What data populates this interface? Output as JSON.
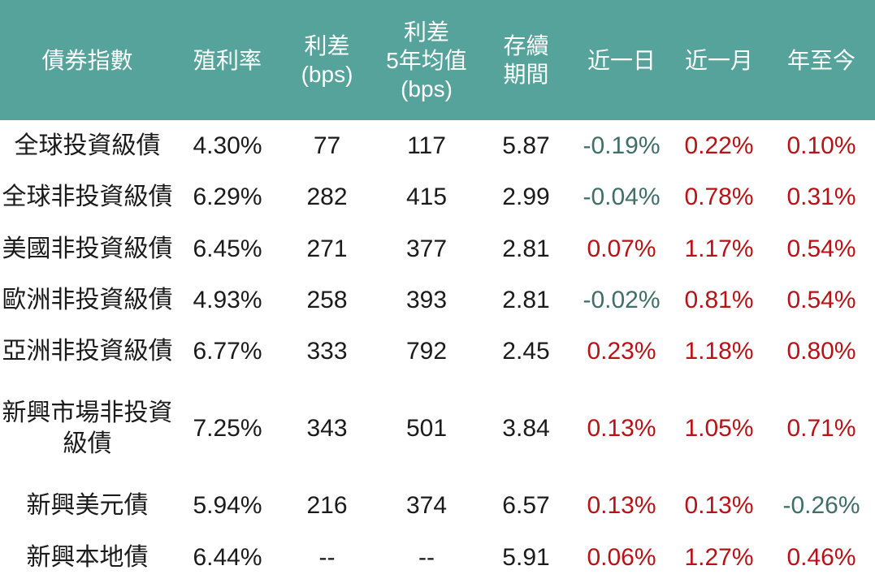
{
  "theme": {
    "header_background": "#55a39b",
    "header_text_color": "#ffffff",
    "body_text_color": "#1b1b1b",
    "positive_change_color": "#b71317",
    "negative_change_color": "#406e68",
    "page_background": "#ffffff"
  },
  "table": {
    "headers": [
      "債券指數",
      "殖利率",
      "利差\n(bps)",
      "利差\n5年均值\n(bps)",
      "存續\n期間",
      "近一日",
      "近一月",
      "年至今"
    ],
    "rows": [
      {
        "name": "全球投資級債",
        "yield": "4.30%",
        "spread_bps": "77",
        "spread_5y_avg_bps": "117",
        "duration": "5.87",
        "day": "-0.19%",
        "month": "0.22%",
        "ytd": "0.10%"
      },
      {
        "name": "全球非投資級債",
        "yield": "6.29%",
        "spread_bps": "282",
        "spread_5y_avg_bps": "415",
        "duration": "2.99",
        "day": "-0.04%",
        "month": "0.78%",
        "ytd": "0.31%"
      },
      {
        "name": "美國非投資級債",
        "yield": "6.45%",
        "spread_bps": "271",
        "spread_5y_avg_bps": "377",
        "duration": "2.81",
        "day": "0.07%",
        "month": "1.17%",
        "ytd": "0.54%"
      },
      {
        "name": "歐洲非投資級債",
        "yield": "4.93%",
        "spread_bps": "258",
        "spread_5y_avg_bps": "393",
        "duration": "2.81",
        "day": "-0.02%",
        "month": "0.81%",
        "ytd": "0.54%"
      },
      {
        "name": "亞洲非投資級債",
        "yield": "6.77%",
        "spread_bps": "333",
        "spread_5y_avg_bps": "792",
        "duration": "2.45",
        "day": "0.23%",
        "month": "1.18%",
        "ytd": "0.80%"
      },
      {
        "name": "新興市場非投資級債",
        "yield": "7.25%",
        "spread_bps": "343",
        "spread_5y_avg_bps": "501",
        "duration": "3.84",
        "day": "0.13%",
        "month": "1.05%",
        "ytd": "0.71%"
      },
      {
        "name": "新興美元債",
        "yield": "5.94%",
        "spread_bps": "216",
        "spread_5y_avg_bps": "374",
        "duration": "6.57",
        "day": "0.13%",
        "month": "0.13%",
        "ytd": "-0.26%"
      },
      {
        "name": "新興本地債",
        "yield": "6.44%",
        "spread_bps": "--",
        "spread_5y_avg_bps": "--",
        "duration": "5.91",
        "day": "0.06%",
        "month": "1.27%",
        "ytd": "0.46%"
      }
    ]
  },
  "chart_data": {
    "type": "table",
    "columns": [
      "債券指數",
      "殖利率",
      "利差(bps)",
      "利差5年均值(bps)",
      "存續期間",
      "近一日",
      "近一月",
      "年至今"
    ],
    "rows": [
      [
        "全球投資級債",
        "4.30%",
        "77",
        "117",
        "5.87",
        "-0.19%",
        "0.22%",
        "0.10%"
      ],
      [
        "全球非投資級債",
        "6.29%",
        "282",
        "415",
        "2.99",
        "-0.04%",
        "0.78%",
        "0.31%"
      ],
      [
        "美國非投資級債",
        "6.45%",
        "271",
        "377",
        "2.81",
        "0.07%",
        "1.17%",
        "0.54%"
      ],
      [
        "歐洲非投資級債",
        "4.93%",
        "258",
        "393",
        "2.81",
        "-0.02%",
        "0.81%",
        "0.54%"
      ],
      [
        "亞洲非投資級債",
        "6.77%",
        "333",
        "792",
        "2.45",
        "0.23%",
        "1.18%",
        "0.80%"
      ],
      [
        "新興市場非投資級債",
        "7.25%",
        "343",
        "501",
        "3.84",
        "0.13%",
        "1.05%",
        "0.71%"
      ],
      [
        "新興美元債",
        "5.94%",
        "216",
        "374",
        "6.57",
        "0.13%",
        "0.13%",
        "-0.26%"
      ],
      [
        "新興本地債",
        "6.44%",
        "--",
        "--",
        "5.91",
        "0.06%",
        "1.27%",
        "0.46%"
      ]
    ],
    "notes": {
      "color_coding": "negative values shown in dark teal (#406e68), positive values shown in red (#b71317)",
      "value_semantics": "near-day / near-month / year-to-date percentage changes"
    }
  }
}
